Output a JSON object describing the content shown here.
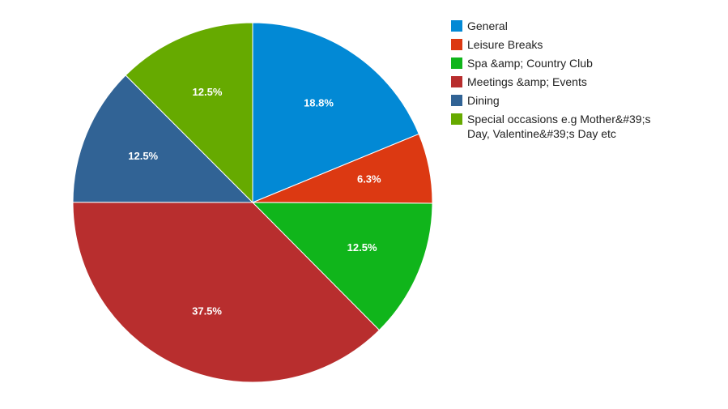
{
  "chart_data": {
    "type": "pie",
    "legend_position": "right",
    "slices": [
      {
        "label": "General",
        "value": 18.8,
        "display": "18.8%",
        "color": "#0289d5"
      },
      {
        "label": "Leisure Breaks",
        "value": 6.3,
        "display": "6.3%",
        "color": "#dc3912"
      },
      {
        "label": "Spa &amp; Country Club",
        "value": 12.5,
        "display": "12.5%",
        "color": "#10b51b"
      },
      {
        "label": "Meetings &amp; Events",
        "value": 37.5,
        "display": "37.5%",
        "color": "#b82e2e"
      },
      {
        "label": "Dining",
        "value": 12.5,
        "display": "12.5%",
        "color": "#316395"
      },
      {
        "label": "Special occasions e.g Mother&#39;s Day, Valentine&#39;s Day etc",
        "value": 12.5,
        "display": "12.5%",
        "color": "#66aa00",
        "label_lines": [
          "Special occasions e.g Mother&#39;s",
          "Day, Valentine&#39;s Day etc"
        ]
      }
    ]
  }
}
